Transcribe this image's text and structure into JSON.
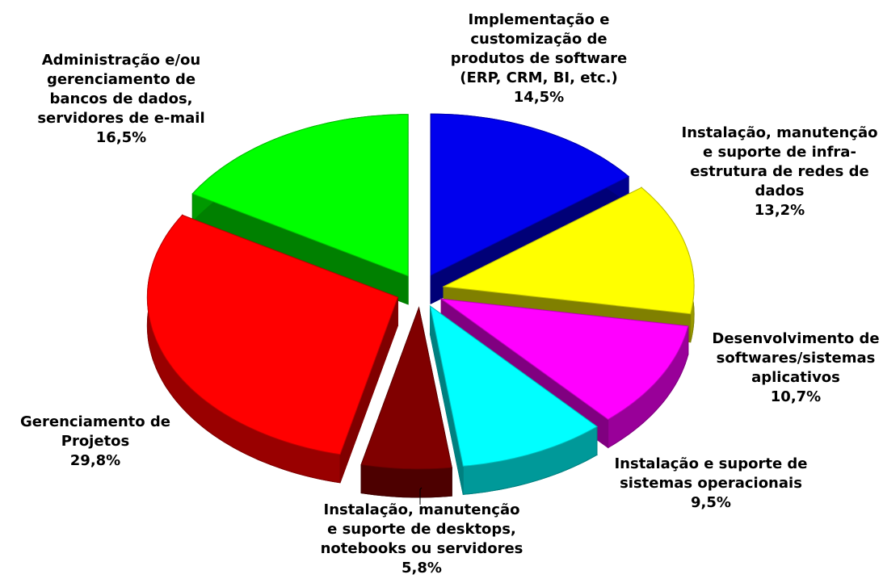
{
  "chart_data": {
    "type": "pie3d",
    "categories": [
      "Implementação e\ncustomização de\nprodutos de software\n(ERP, CRM, BI, etc.)",
      "Instalação, manutenção\ne suporte de infra-\nestrutura de redes de\ndados",
      "Desenvolvimento de\nsoftwares/sistemas\naplicativos",
      "Instalação e suporte de\nsistemas operacionais",
      "Instalação, manutenção\ne suporte de desktops,\nnotebooks ou servidores",
      "Gerenciamento de\nProjetos",
      "Administração e/ou\ngerenciamento de\nbancos de dados,\nservidores de e-mail"
    ],
    "values": [
      14.5,
      13.2,
      10.7,
      9.5,
      5.8,
      29.8,
      16.5
    ],
    "value_labels": [
      "14,5%",
      "13,2%",
      "10,7%",
      "9,5%",
      "5,8%",
      "29,8%",
      "16,5%"
    ],
    "colors": [
      "#0000ee",
      "#ffff00",
      "#ff00ff",
      "#00ffff",
      "#800000",
      "#ff0000",
      "#00ff00"
    ]
  }
}
